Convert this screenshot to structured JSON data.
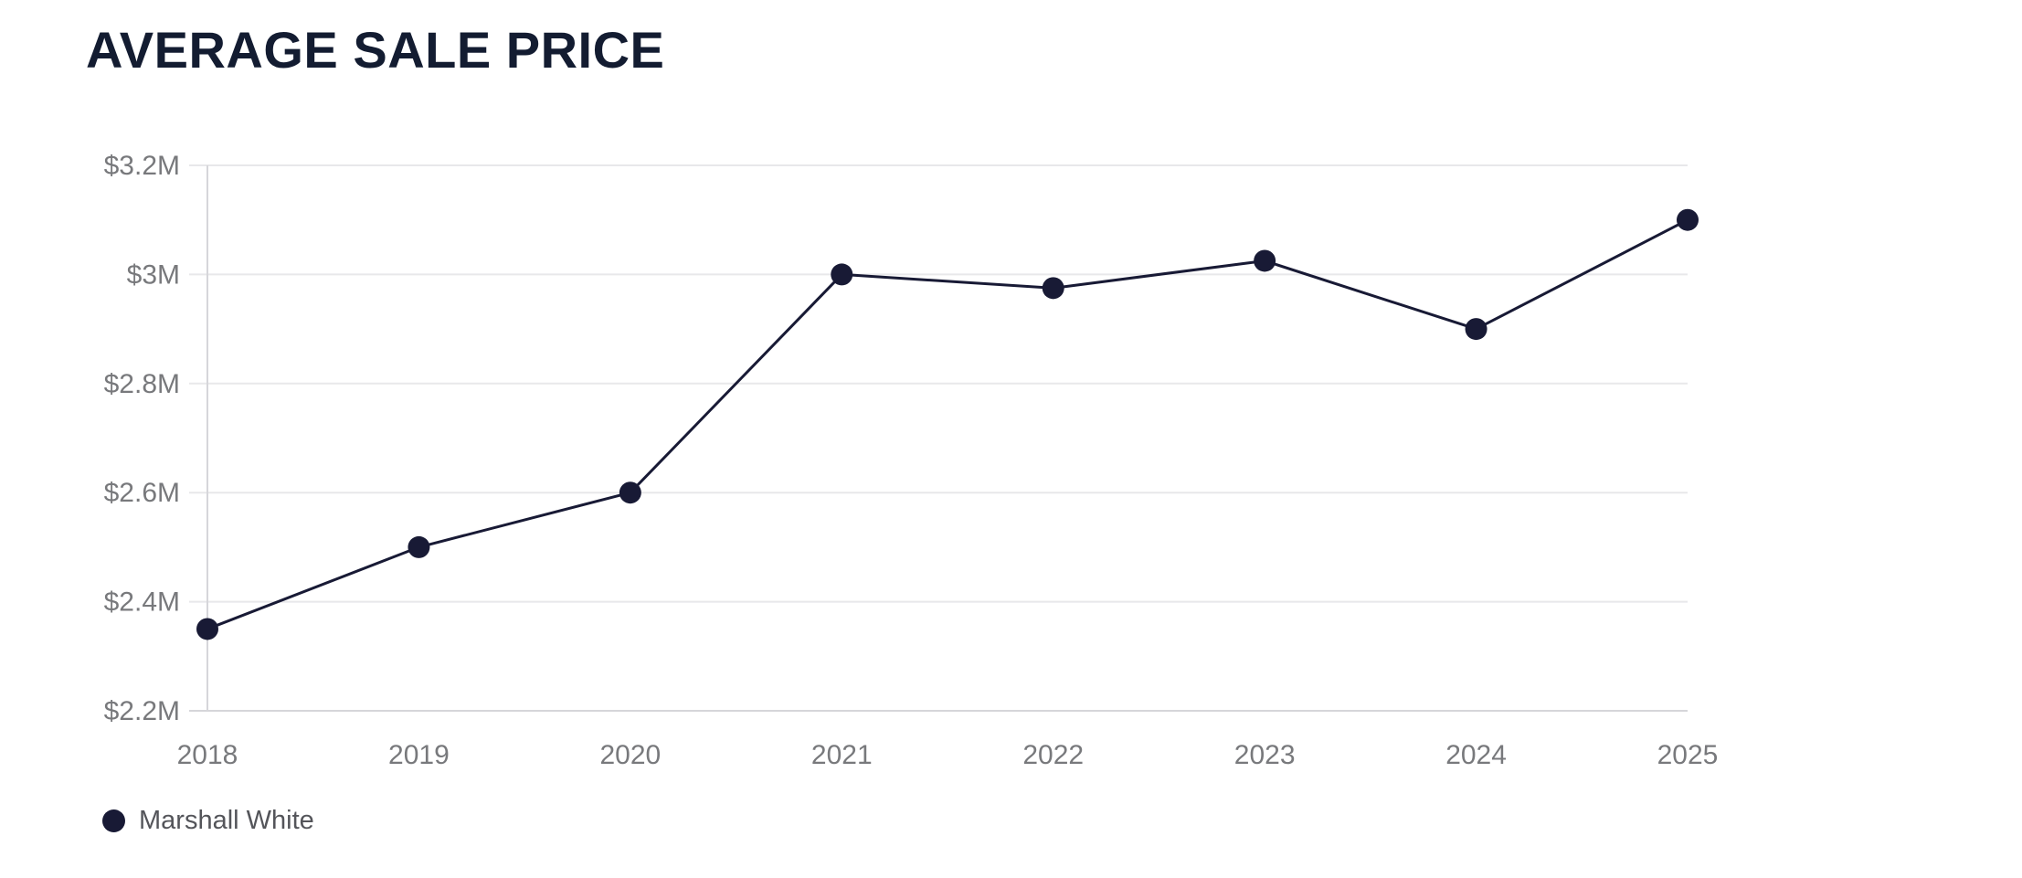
{
  "title": "AVERAGE SALE PRICE",
  "legend": {
    "label": "Marshall White",
    "marker_icon": "filled-circle",
    "marker_color": "#181a35"
  },
  "chart_data": {
    "type": "line",
    "title": "AVERAGE SALE PRICE",
    "categories": [
      "2018",
      "2019",
      "2020",
      "2021",
      "2022",
      "2023",
      "2024",
      "2025"
    ],
    "series": [
      {
        "name": "Marshall White",
        "color": "#181a35",
        "values": [
          2.35,
          2.5,
          2.6,
          3.0,
          2.975,
          3.025,
          2.9,
          3.1
        ]
      }
    ],
    "xlabel": "",
    "ylabel": "",
    "ylim": [
      2.2,
      3.2
    ],
    "y_ticks": [
      {
        "value": 2.2,
        "label": "$2.2M"
      },
      {
        "value": 2.4,
        "label": "$2.4M"
      },
      {
        "value": 2.6,
        "label": "$2.6M"
      },
      {
        "value": 2.8,
        "label": "$2.8M"
      },
      {
        "value": 3.0,
        "label": "$3M"
      },
      {
        "value": 3.2,
        "label": "$3.2M"
      }
    ],
    "grid": true,
    "legend_position": "bottom-left",
    "colors": {
      "line": "#181a35",
      "point": "#181a35",
      "grid": "#e8e8ea",
      "axis": "#d6d6da",
      "tick_text": "#78797c",
      "title_text": "#131c31"
    }
  }
}
